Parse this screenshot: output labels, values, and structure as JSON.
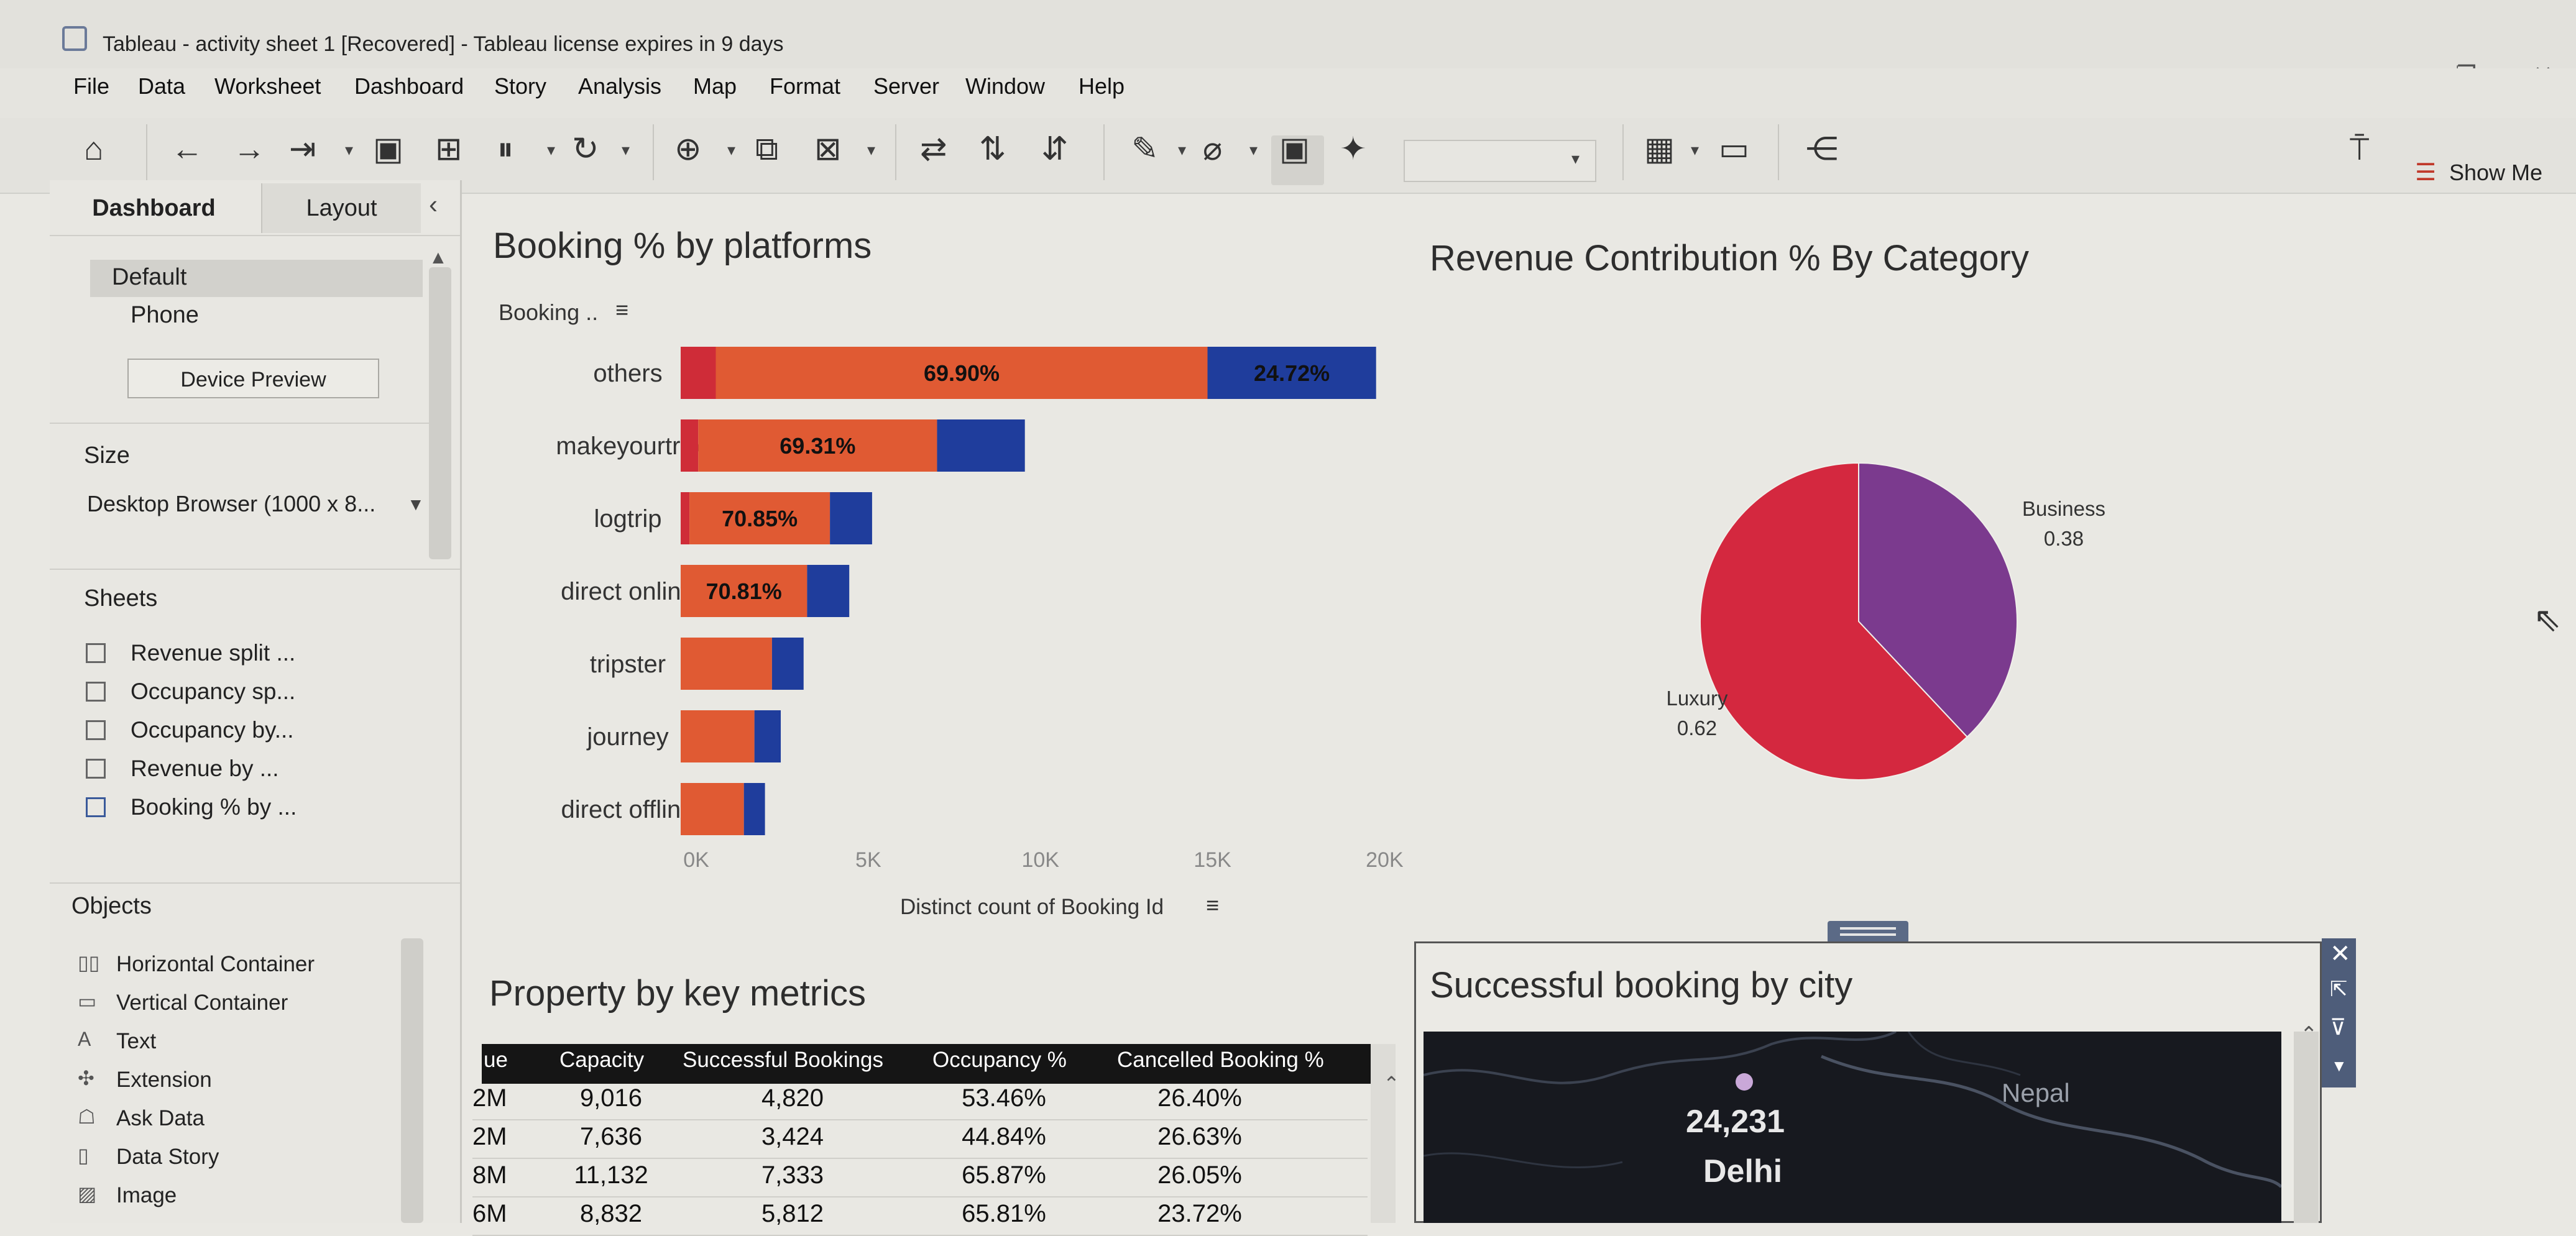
{
  "window": {
    "title": "Tableau - activity sheet 1 [Recovered] - Tableau license expires in 9 days",
    "controls": [
      "–",
      "❐",
      "✕"
    ]
  },
  "menu": [
    "File",
    "Data",
    "Worksheet",
    "Dashboard",
    "Story",
    "Analysis",
    "Map",
    "Format",
    "Server",
    "Window",
    "Help"
  ],
  "toolbar": {
    "show_me_label": "Show Me"
  },
  "left_pane": {
    "tabs": [
      "Dashboard",
      "Layout"
    ],
    "devices": [
      "Default",
      "Phone"
    ],
    "device_preview_label": "Device Preview",
    "size_heading": "Size",
    "size_value": "Desktop Browser (1000 x 8...",
    "sheets_heading": "Sheets",
    "sheets": [
      "Revenue split ...",
      "Occupancy sp...",
      "Occupancy by...",
      "Revenue by ...",
      "Booking % by ..."
    ],
    "objects_heading": "Objects",
    "objects": [
      {
        "label": "Horizontal Container",
        "icon": "horizontal-container-icon",
        "glyph": "▯▯"
      },
      {
        "label": "Vertical Container",
        "icon": "vertical-container-icon",
        "glyph": "▭"
      },
      {
        "label": "Text",
        "icon": "text-icon",
        "glyph": "A"
      },
      {
        "label": "Extension",
        "icon": "extension-icon",
        "glyph": "✣"
      },
      {
        "label": "Ask Data",
        "icon": "ask-data-icon",
        "glyph": "☖"
      },
      {
        "label": "Data Story",
        "icon": "data-story-icon",
        "glyph": "▯"
      },
      {
        "label": "Image",
        "icon": "image-icon",
        "glyph": "▨"
      }
    ]
  },
  "booking_chart": {
    "title": "Booking % by platforms",
    "column_header": "Booking ..",
    "x_axis_title": "Distinct count of Booking Id",
    "x_ticks": [
      "0K",
      "5K",
      "10K",
      "15K",
      "20K"
    ],
    "colors": {
      "red": "#cf2c38",
      "orange": "#e05a33",
      "blue": "#1f3d9c"
    }
  },
  "pie_chart": {
    "title": "Revenue Contribution % By Category",
    "colors": {
      "Luxury": "#d4283f",
      "Business": "#7b3a8e"
    }
  },
  "table": {
    "title": "Property by key metrics",
    "columns": [
      "ue",
      "Capacity",
      "Successful Bookings",
      "Occupancy %",
      "Cancelled Booking %"
    ],
    "rows": [
      [
        "2M",
        "9,016",
        "4,820",
        "53.46%",
        "26.40%"
      ],
      [
        "2M",
        "7,636",
        "3,424",
        "44.84%",
        "26.63%"
      ],
      [
        "8M",
        "11,132",
        "7,333",
        "65.87%",
        "26.05%"
      ],
      [
        "6M",
        "8,832",
        "5,812",
        "65.81%",
        "23.72%"
      ]
    ]
  },
  "map": {
    "title": "Successful booking by city",
    "value": "24,231",
    "city": "Delhi",
    "country_label": "Nepal"
  },
  "chart_data": [
    {
      "type": "bar",
      "orientation": "horizontal",
      "stacked": true,
      "title": "Booking % by platforms",
      "xlabel": "Distinct count of Booking Id",
      "xlim": [
        0,
        20000
      ],
      "categories": [
        "others",
        "makeyourtrip",
        "logtrip",
        "direct online",
        "tripster",
        "journey",
        "direct offline"
      ],
      "series": [
        {
          "values": [
            1000,
            500,
            250,
            0,
            0,
            0,
            0
          ]
        },
        {
          "values": [
            14000,
            6800,
            4000,
            3600,
            2600,
            2100,
            1800
          ]
        },
        {
          "values": [
            4800,
            2500,
            1200,
            1200,
            900,
            750,
            600
          ]
        }
      ],
      "labels": [
        "69.90%",
        "69.31%",
        "70.85%",
        "70.81%",
        "",
        "",
        ""
      ],
      "secondary_labels": [
        "24.72%",
        "",
        "",
        "",
        "",
        "",
        ""
      ]
    },
    {
      "type": "pie",
      "title": "Revenue Contribution % By Category",
      "categories": [
        "Business",
        "Luxury"
      ],
      "values": [
        0.38,
        0.62
      ]
    }
  ]
}
